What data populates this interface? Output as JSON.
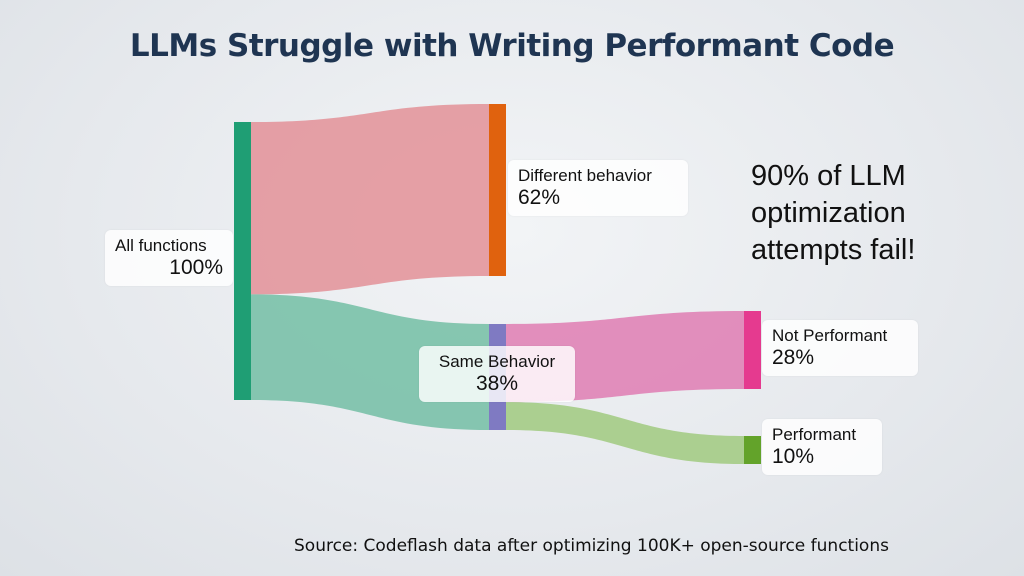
{
  "title": "LLMs Struggle with Writing Performant Code",
  "colors": {
    "title": "#1f3552",
    "node_all": "#1f9e74",
    "node_diff": "#e0620e",
    "node_same": "#7f7ac2",
    "node_notperf": "#e53a8f",
    "node_perf": "#63a32a",
    "link_diff": "#e49aa0",
    "link_same": "#7fc3ac",
    "link_notperf": "#e088b8",
    "link_perf": "#a8cd8a"
  },
  "nodes": [
    {
      "id": "all",
      "name": "All functions",
      "value": "100%"
    },
    {
      "id": "diff",
      "name": "Different behavior",
      "value": "62%"
    },
    {
      "id": "same",
      "name": "Same Behavior",
      "value": "38%"
    },
    {
      "id": "notperf",
      "name": "Not Performant",
      "value": "28%"
    },
    {
      "id": "perf",
      "name": "Performant",
      "value": "10%"
    }
  ],
  "links": [
    {
      "source": "all",
      "target": "diff",
      "value": 62
    },
    {
      "source": "all",
      "target": "same",
      "value": 38
    },
    {
      "source": "same",
      "target": "notperf",
      "value": 28
    },
    {
      "source": "same",
      "target": "perf",
      "value": 10
    }
  ],
  "callout": {
    "line1": "90% of LLM",
    "line2": "optimization",
    "line3": "attempts fail!"
  },
  "source_note": "Source: Codeflash data after optimizing 100K+ open-source functions"
}
